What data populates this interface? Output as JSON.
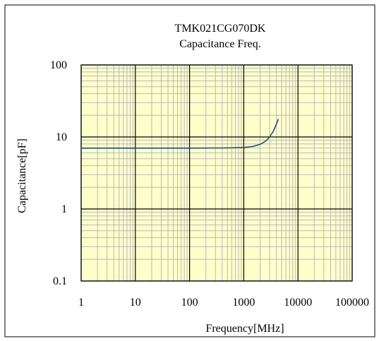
{
  "chart_data": {
    "type": "line",
    "title": "TMK021CG070DK",
    "subtitle": "Capacitance Freq.",
    "xlabel": "Frequency[MHz]",
    "ylabel": "Capacitance[pF]",
    "xscale": "log",
    "yscale": "log",
    "xlim": [
      1,
      100000
    ],
    "ylim": [
      0.1,
      100
    ],
    "x_ticks": [
      "1",
      "10",
      "100",
      "1000",
      "10000",
      "100000"
    ],
    "y_ticks": [
      "100",
      "10",
      "1",
      "0.1"
    ],
    "grid": true,
    "legend": "none",
    "colors": {
      "plot_background": "#ffffcc",
      "minor_grid": "#b8b8b8",
      "major_grid": "#000000",
      "line": "#1f4e79"
    },
    "series": [
      {
        "x": [
          1,
          10,
          100,
          500,
          1000,
          1500,
          2000,
          2500,
          3000,
          3500,
          4000,
          4300
        ],
        "y": [
          7.0,
          7.0,
          7.0,
          7.05,
          7.15,
          7.4,
          7.9,
          8.7,
          10.0,
          12.0,
          15.0,
          17.5
        ]
      }
    ]
  }
}
